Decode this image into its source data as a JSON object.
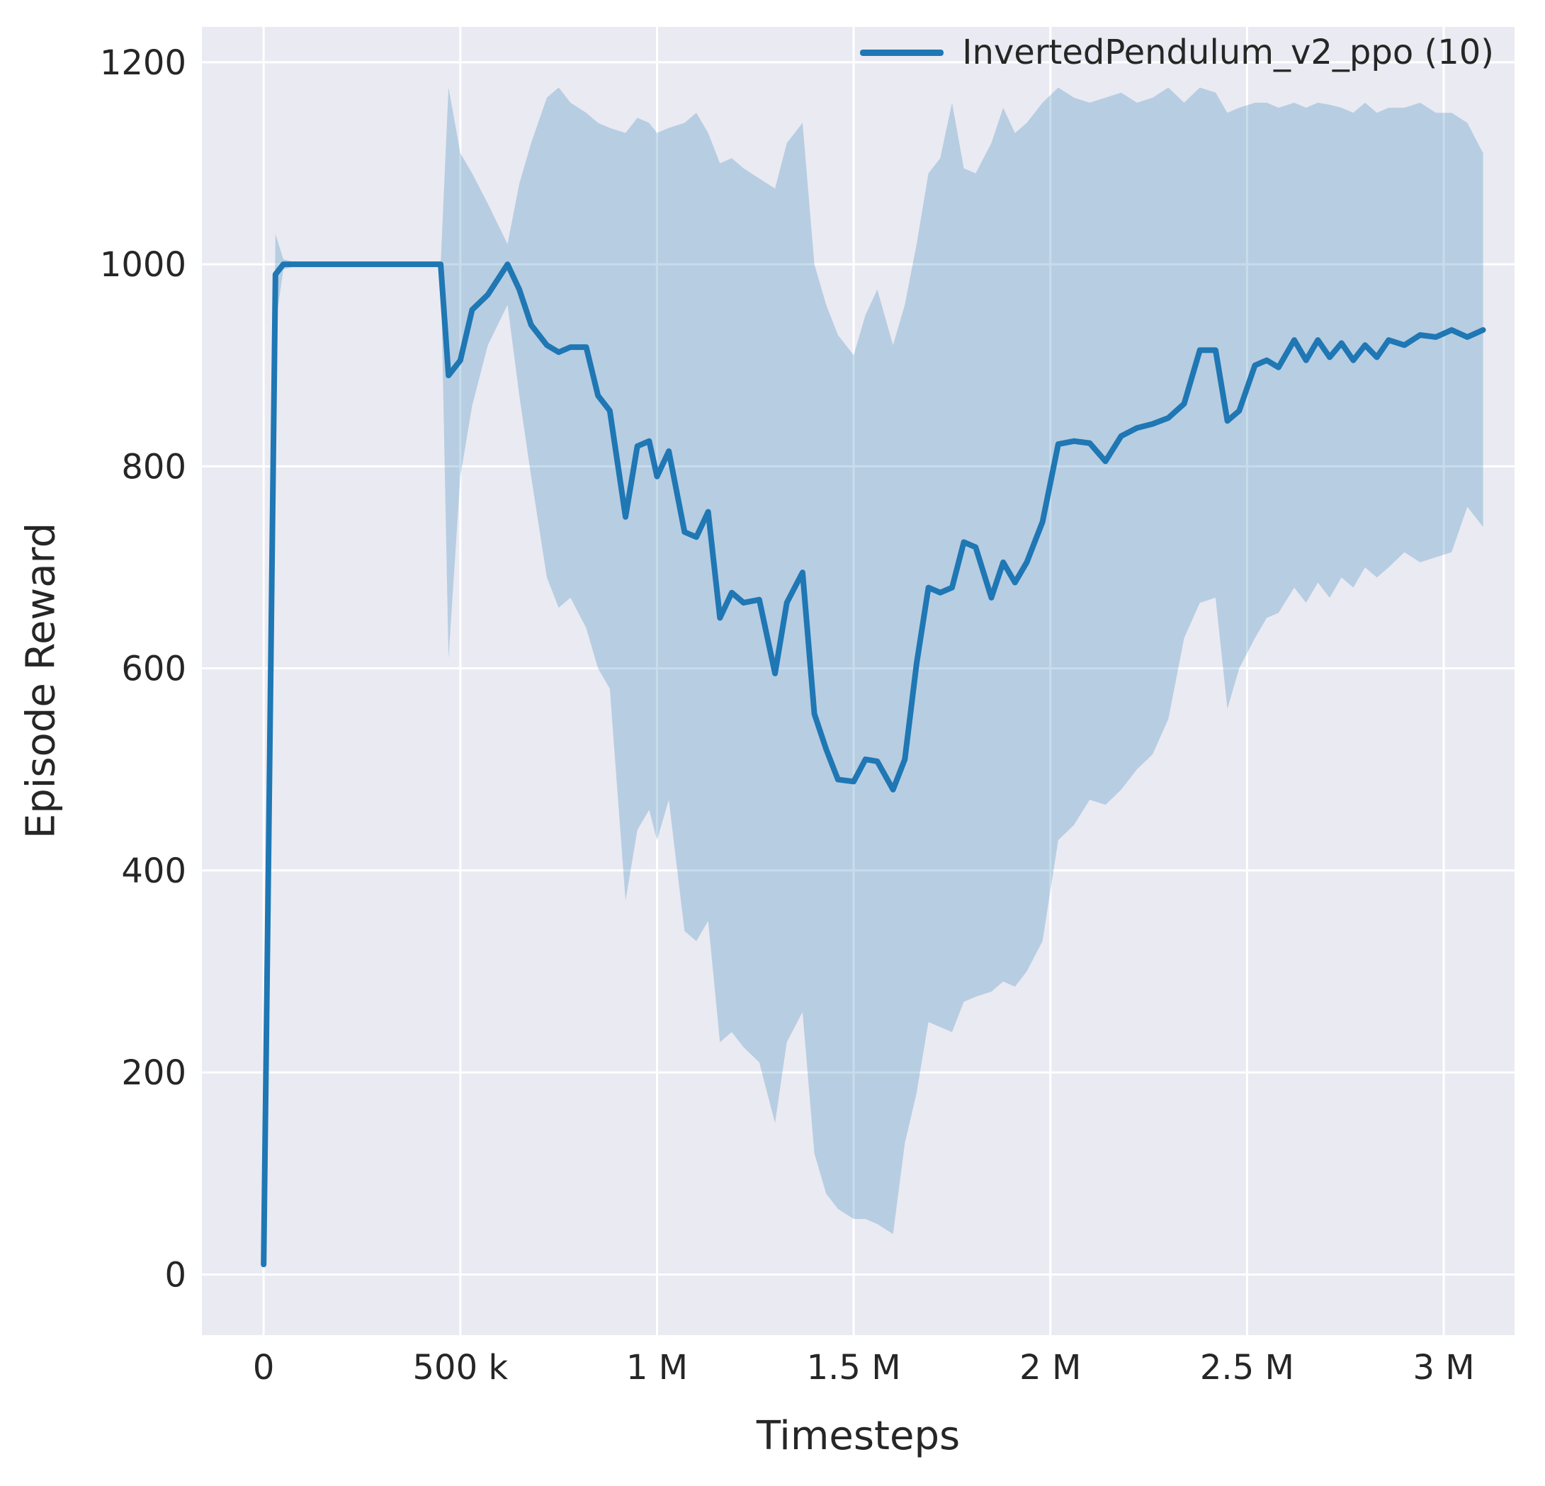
{
  "chart_data": {
    "type": "line",
    "title": "",
    "xlabel": "Timesteps",
    "ylabel": "Episode Reward",
    "x_unit": "millions",
    "grid": true,
    "legend_position": "upper right",
    "xlim": [
      -0.157,
      3.18
    ],
    "ylim": [
      -60,
      1235
    ],
    "xticks": [
      0,
      0.5,
      1,
      1.5,
      2,
      2.5,
      3
    ],
    "xtick_labels": [
      "0",
      "500 k",
      "1 M",
      "1.5 M",
      "2 M",
      "2.5 M",
      "3 M"
    ],
    "yticks": [
      0,
      200,
      400,
      600,
      800,
      1000,
      1200
    ],
    "ytick_labels": [
      "0",
      "200",
      "400",
      "600",
      "800",
      "1000",
      "1200"
    ],
    "series": [
      {
        "name": "InvertedPendulum_v2_ppo (10)",
        "x": [
          0,
          0.03,
          0.05,
          0.1,
          0.2,
          0.3,
          0.4,
          0.45,
          0.47,
          0.5,
          0.53,
          0.57,
          0.62,
          0.65,
          0.68,
          0.72,
          0.75,
          0.78,
          0.82,
          0.85,
          0.88,
          0.92,
          0.95,
          0.98,
          1.0,
          1.03,
          1.07,
          1.1,
          1.13,
          1.16,
          1.19,
          1.22,
          1.26,
          1.3,
          1.33,
          1.37,
          1.4,
          1.43,
          1.46,
          1.5,
          1.53,
          1.56,
          1.6,
          1.63,
          1.66,
          1.69,
          1.72,
          1.75,
          1.78,
          1.81,
          1.85,
          1.88,
          1.91,
          1.94,
          1.98,
          2.02,
          2.06,
          2.1,
          2.14,
          2.18,
          2.22,
          2.26,
          2.3,
          2.34,
          2.38,
          2.42,
          2.45,
          2.48,
          2.52,
          2.55,
          2.58,
          2.62,
          2.65,
          2.68,
          2.71,
          2.74,
          2.77,
          2.8,
          2.83,
          2.86,
          2.9,
          2.94,
          2.98,
          3.02,
          3.06,
          3.1
        ],
        "mean": [
          10,
          990,
          1000,
          1000,
          1000,
          1000,
          1000,
          1000,
          890,
          905,
          955,
          970,
          1000,
          975,
          940,
          920,
          913,
          918,
          918,
          870,
          855,
          750,
          820,
          825,
          790,
          815,
          735,
          730,
          755,
          650,
          675,
          665,
          668,
          595,
          665,
          695,
          555,
          520,
          490,
          488,
          510,
          508,
          480,
          510,
          605,
          680,
          675,
          680,
          725,
          720,
          670,
          705,
          685,
          705,
          745,
          822,
          825,
          823,
          805,
          830,
          838,
          842,
          848,
          862,
          915,
          915,
          845,
          855,
          900,
          905,
          898,
          925,
          905,
          925,
          908,
          922,
          905,
          920,
          908,
          925,
          920,
          930,
          928,
          935,
          928,
          935
        ],
        "low": [
          10,
          940,
          995,
          1000,
          1000,
          1000,
          1000,
          1000,
          610,
          790,
          860,
          920,
          960,
          870,
          790,
          690,
          660,
          670,
          640,
          600,
          580,
          370,
          440,
          460,
          430,
          470,
          340,
          330,
          350,
          230,
          240,
          225,
          210,
          150,
          230,
          260,
          120,
          80,
          65,
          55,
          55,
          50,
          40,
          130,
          180,
          250,
          245,
          240,
          270,
          275,
          280,
          290,
          285,
          300,
          330,
          430,
          445,
          470,
          465,
          480,
          500,
          515,
          550,
          630,
          665,
          670,
          560,
          600,
          630,
          650,
          655,
          680,
          665,
          685,
          670,
          690,
          680,
          700,
          690,
          700,
          715,
          705,
          710,
          715,
          760,
          740
        ],
        "high": [
          10,
          1030,
          1005,
          1000,
          1000,
          1000,
          1000,
          1000,
          1175,
          1110,
          1090,
          1060,
          1020,
          1080,
          1120,
          1165,
          1175,
          1160,
          1150,
          1140,
          1135,
          1130,
          1145,
          1140,
          1130,
          1135,
          1140,
          1150,
          1130,
          1100,
          1105,
          1095,
          1085,
          1075,
          1120,
          1140,
          1000,
          960,
          930,
          910,
          950,
          975,
          920,
          960,
          1020,
          1090,
          1105,
          1160,
          1095,
          1090,
          1120,
          1155,
          1130,
          1140,
          1160,
          1175,
          1165,
          1160,
          1165,
          1170,
          1160,
          1165,
          1175,
          1160,
          1175,
          1170,
          1150,
          1155,
          1160,
          1160,
          1155,
          1160,
          1155,
          1160,
          1158,
          1155,
          1150,
          1160,
          1150,
          1155,
          1155,
          1160,
          1150,
          1150,
          1140,
          1110
        ]
      }
    ],
    "colors": {
      "line": "#1f77b4",
      "band": "rgba(31,119,180,0.25)",
      "plot_bg": "#eaeaf2",
      "figure_bg": "#ffffff",
      "grid": "#ffffff",
      "text": "#262626"
    }
  }
}
